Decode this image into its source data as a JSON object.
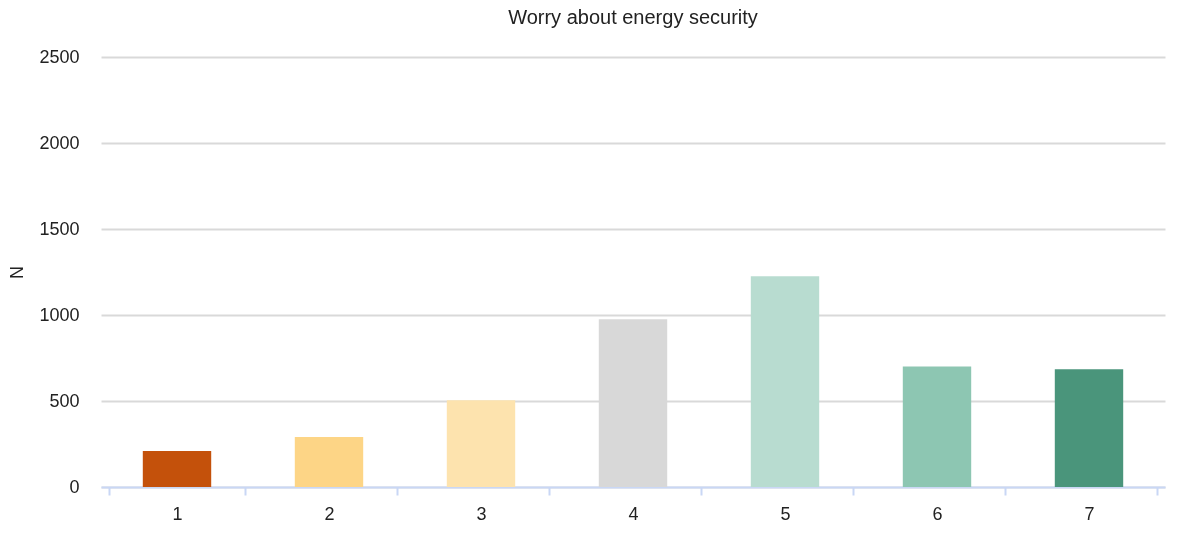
{
  "chart_data": {
    "type": "bar",
    "title": "Worry about energy security",
    "ylabel": "N",
    "categories": [
      "1",
      "2",
      "3",
      "4",
      "5",
      "6",
      "7"
    ],
    "values": [
      210,
      290,
      505,
      975,
      1225,
      700,
      685
    ],
    "colors": [
      "#c4510b",
      "#fdd586",
      "#fde3ae",
      "#d8d8d8",
      "#b8dcd0",
      "#8dc6b2",
      "#4a957b"
    ],
    "ylim": [
      0,
      2500
    ],
    "yticks": [
      0,
      500,
      1000,
      1500,
      2000,
      2500
    ],
    "grid": "y",
    "legend": false
  }
}
